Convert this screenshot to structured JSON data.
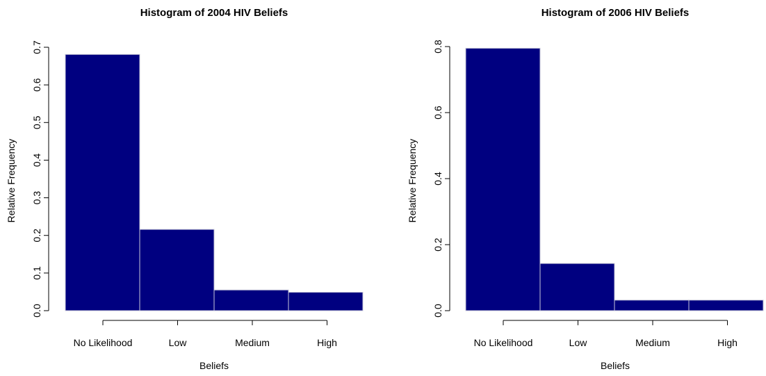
{
  "chart_data": [
    {
      "type": "bar",
      "title": "Histogram of 2004 HIV Beliefs",
      "xlabel": "Beliefs",
      "ylabel": "Relative Frequency",
      "categories": [
        "No Likelihood",
        "Low",
        "Medium",
        "High"
      ],
      "values": [
        0.681,
        0.216,
        0.055,
        0.049
      ],
      "ylim": [
        0,
        0.7
      ],
      "yticks": [
        "0.0",
        "0.1",
        "0.2",
        "0.3",
        "0.4",
        "0.5",
        "0.6",
        "0.7"
      ],
      "bar_color": "#000080",
      "bar_border": "#c8c8d8",
      "grid": false
    },
    {
      "type": "bar",
      "title": "Histogram of 2006 HIV Beliefs",
      "xlabel": "Beliefs",
      "ylabel": "Relative Frequency",
      "categories": [
        "No Likelihood",
        "Low",
        "Medium",
        "High"
      ],
      "values": [
        0.795,
        0.143,
        0.032,
        0.032
      ],
      "ylim": [
        0,
        0.8
      ],
      "yticks": [
        "0.0",
        "0.2",
        "0.4",
        "0.6",
        "0.8"
      ],
      "bar_color": "#000080",
      "bar_border": "#c8c8d8",
      "grid": false
    }
  ]
}
